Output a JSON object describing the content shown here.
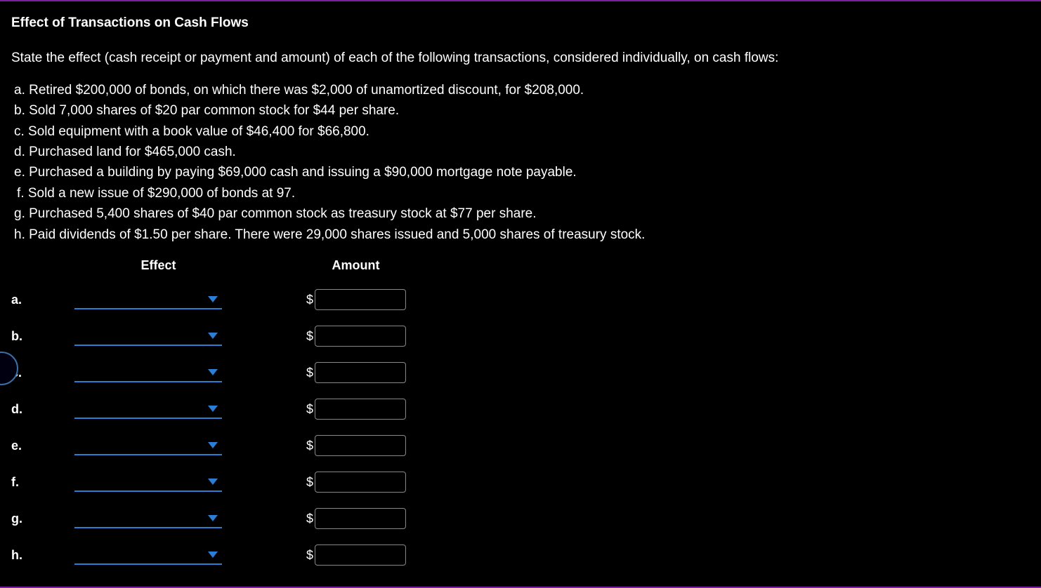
{
  "title": "Effect of Transactions on Cash Flows",
  "instruction": "State the effect (cash receipt or payment and amount) of each of the following transactions, considered individually, on cash flows:",
  "items": {
    "a": "a. Retired $200,000 of bonds, on which there was $2,000 of unamortized discount, for $208,000.",
    "b": "b. Sold 7,000 shares of $20 par common stock for $44 per share.",
    "c": "c. Sold equipment with a book value of $46,400 for $66,800.",
    "d": "d. Purchased land for $465,000 cash.",
    "e": "e. Purchased a building by paying $69,000 cash and issuing a $90,000 mortgage note payable.",
    "f": "f. Sold a new issue of $290,000 of bonds at 97.",
    "g": "g. Purchased 5,400 shares of $40 par common stock as treasury stock at $77 per share.",
    "h": "h. Paid dividends of $1.50 per share. There were 29,000 shares issued and 5,000 shares of treasury stock."
  },
  "table": {
    "headers": {
      "effect": "Effect",
      "amount": "Amount"
    },
    "currency_symbol": "$",
    "rows": [
      {
        "label": "a.",
        "effect_value": "",
        "amount_value": ""
      },
      {
        "label": "b.",
        "effect_value": "",
        "amount_value": ""
      },
      {
        "label": "c.",
        "effect_value": "",
        "amount_value": ""
      },
      {
        "label": "d.",
        "effect_value": "",
        "amount_value": ""
      },
      {
        "label": "e.",
        "effect_value": "",
        "amount_value": ""
      },
      {
        "label": "f.",
        "effect_value": "",
        "amount_value": ""
      },
      {
        "label": "g.",
        "effect_value": "",
        "amount_value": ""
      },
      {
        "label": "h.",
        "effect_value": "",
        "amount_value": ""
      }
    ]
  },
  "colors": {
    "background": "#000000",
    "text": "#ffffff",
    "accent_border": "#7a1fa2",
    "select_underline": "#2d7dd2",
    "caret": "#2d7dd2",
    "input_border": "#888888"
  }
}
